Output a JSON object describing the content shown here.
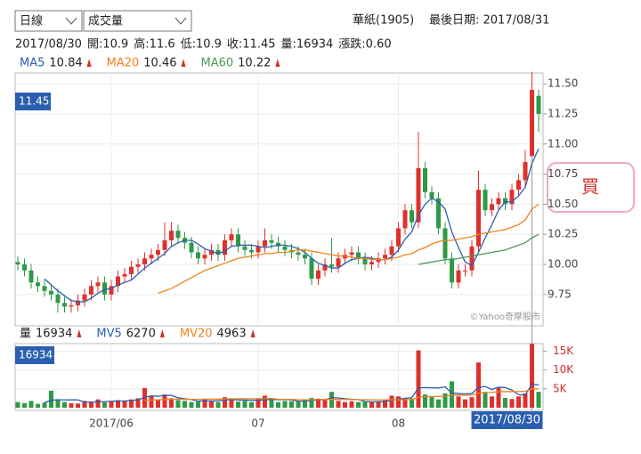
{
  "header": {
    "period": "日線",
    "indicator": "成交量",
    "stock": "華紙(1905)",
    "last_date": "最後日期: 2017/08/31",
    "info": [
      "2017/08/30",
      "開:10.9",
      "高:11.6",
      "低:10.9",
      "收:11.45",
      "量:16934",
      "漲跌:0.60"
    ],
    "buy": "買"
  },
  "chart_data": {
    "type": "candlestick",
    "watermark": "©Yahoo奇摩股市",
    "up_color": "#e0302c",
    "down_color": "#2e9a46",
    "categories": [
      null,
      null,
      null,
      null,
      null,
      null,
      null,
      null,
      null,
      null,
      null,
      null,
      null,
      null,
      "2017/06",
      null,
      null,
      null,
      null,
      null,
      null,
      null,
      null,
      null,
      null,
      null,
      null,
      null,
      null,
      null,
      null,
      null,
      null,
      null,
      null,
      null,
      "07",
      null,
      null,
      null,
      null,
      null,
      null,
      null,
      null,
      null,
      null,
      null,
      null,
      null,
      null,
      null,
      null,
      null,
      null,
      null,
      null,
      "08",
      null,
      null,
      null,
      null,
      null,
      null,
      null,
      null,
      null,
      null,
      null,
      null,
      null,
      null,
      null,
      null,
      null,
      null,
      null,
      "2017/08/30",
      null
    ],
    "open": [
      10.02,
      10.0,
      9.95,
      9.85,
      9.82,
      9.78,
      9.75,
      9.68,
      9.65,
      9.66,
      9.7,
      9.75,
      9.82,
      9.85,
      9.75,
      9.82,
      9.9,
      9.92,
      9.98,
      10.0,
      10.05,
      10.08,
      10.12,
      10.2,
      10.28,
      10.22,
      10.18,
      10.1,
      10.05,
      10.08,
      10.12,
      10.08,
      10.2,
      10.25,
      10.15,
      10.12,
      10.1,
      10.15,
      10.2,
      10.18,
      10.15,
      10.12,
      10.1,
      10.08,
      10.05,
      9.88,
      9.95,
      10.0,
      9.98,
      10.05,
      10.08,
      10.1,
      10.05,
      10.0,
      10.02,
      10.05,
      10.08,
      10.15,
      10.3,
      10.45,
      10.35,
      10.8,
      10.6,
      10.55,
      10.3,
      10.05,
      9.85,
      9.95,
      9.95,
      10.15,
      10.62,
      10.45,
      10.5,
      10.55,
      10.5,
      10.62,
      10.7,
      10.9,
      11.4
    ],
    "high": [
      10.07,
      10.05,
      10.0,
      9.9,
      9.87,
      9.83,
      9.8,
      9.73,
      9.71,
      9.75,
      9.8,
      9.87,
      9.9,
      9.9,
      9.87,
      9.95,
      9.97,
      10.03,
      10.05,
      10.1,
      10.13,
      10.17,
      10.35,
      10.35,
      10.33,
      10.27,
      10.23,
      10.15,
      10.13,
      10.17,
      10.17,
      10.25,
      10.3,
      10.3,
      10.2,
      10.17,
      10.2,
      10.3,
      10.25,
      10.23,
      10.2,
      10.17,
      10.15,
      10.13,
      10.1,
      10.0,
      10.05,
      10.22,
      10.1,
      10.13,
      10.15,
      10.15,
      10.1,
      10.07,
      10.1,
      10.13,
      10.2,
      10.35,
      10.5,
      10.5,
      11.1,
      10.85,
      10.65,
      10.6,
      10.35,
      10.1,
      10.0,
      10.0,
      10.2,
      10.78,
      10.67,
      10.55,
      10.6,
      10.6,
      10.67,
      10.75,
      10.95,
      11.6,
      11.45
    ],
    "low": [
      9.95,
      9.9,
      9.8,
      9.77,
      9.73,
      9.7,
      9.6,
      9.6,
      9.6,
      9.61,
      9.65,
      9.7,
      9.77,
      9.7,
      9.7,
      9.77,
      9.85,
      9.87,
      9.93,
      9.95,
      10.0,
      10.03,
      10.07,
      10.15,
      10.17,
      10.13,
      10.05,
      10.0,
      10.0,
      10.03,
      10.03,
      10.03,
      10.15,
      10.1,
      10.07,
      10.05,
      10.05,
      10.1,
      10.13,
      10.1,
      10.07,
      10.05,
      10.03,
      10.0,
      9.83,
      9.83,
      9.9,
      9.93,
      9.93,
      10.0,
      10.03,
      10.0,
      9.95,
      9.95,
      9.97,
      10.0,
      10.03,
      10.1,
      10.25,
      10.3,
      10.3,
      10.55,
      10.5,
      10.25,
      10.0,
      9.8,
      9.8,
      9.9,
      9.9,
      10.1,
      10.4,
      10.4,
      10.45,
      10.45,
      10.45,
      10.57,
      10.65,
      10.9,
      11.1
    ],
    "close": [
      10.0,
      9.95,
      9.85,
      9.82,
      9.78,
      9.75,
      9.68,
      9.65,
      9.66,
      9.7,
      9.75,
      9.82,
      9.85,
      9.75,
      9.82,
      9.9,
      9.92,
      9.98,
      10.0,
      10.05,
      10.08,
      10.12,
      10.2,
      10.28,
      10.22,
      10.18,
      10.1,
      10.05,
      10.08,
      10.12,
      10.08,
      10.2,
      10.25,
      10.15,
      10.12,
      10.1,
      10.15,
      10.2,
      10.18,
      10.15,
      10.12,
      10.1,
      10.08,
      10.05,
      9.88,
      9.95,
      10.0,
      9.98,
      10.05,
      10.08,
      10.1,
      10.05,
      10.0,
      10.02,
      10.05,
      10.08,
      10.15,
      10.3,
      10.45,
      10.35,
      10.8,
      10.6,
      10.55,
      10.3,
      10.05,
      9.85,
      9.95,
      9.95,
      10.15,
      10.62,
      10.45,
      10.5,
      10.55,
      10.5,
      10.62,
      10.7,
      10.85,
      11.45,
      11.25
    ],
    "ylim": [
      9.49,
      11.59
    ],
    "yticks": [
      9.75,
      {
        "value": 10,
        "label": "10.00"
      },
      10.25,
      {
        "value": 10.5,
        "label": "10.50"
      },
      10.75,
      {
        "value": 11,
        "label": "11.00"
      },
      11.25,
      {
        "value": 11.5,
        "label": "11.50"
      }
    ],
    "series": [
      {
        "name": "MA5",
        "color": "#2a5fb0",
        "values": [
          null,
          null,
          null,
          null,
          9.88,
          9.83,
          9.78,
          9.74,
          9.7,
          9.69,
          9.69,
          9.72,
          9.76,
          9.79,
          9.8,
          9.83,
          9.85,
          9.87,
          9.92,
          9.97,
          10.01,
          10.05,
          10.09,
          10.15,
          10.18,
          10.2,
          10.2,
          10.17,
          10.13,
          10.11,
          10.09,
          10.11,
          10.15,
          10.16,
          10.16,
          10.16,
          10.15,
          10.14,
          10.15,
          10.16,
          10.16,
          10.15,
          10.13,
          10.1,
          10.05,
          10.01,
          9.99,
          9.97,
          9.97,
          10.01,
          10.04,
          10.05,
          10.06,
          10.05,
          10.04,
          10.04,
          10.06,
          10.12,
          10.21,
          10.27,
          10.41,
          10.5,
          10.55,
          10.52,
          10.46,
          10.27,
          10.14,
          10.02,
          9.99,
          10.1,
          10.22,
          10.33,
          10.45,
          10.52,
          10.52,
          10.57,
          10.64,
          10.84,
          10.96
        ]
      },
      {
        "name": "MA20",
        "color": "#f0821e",
        "values": [
          null,
          null,
          null,
          null,
          null,
          null,
          null,
          null,
          null,
          null,
          null,
          null,
          null,
          null,
          null,
          null,
          null,
          null,
          null,
          null,
          null,
          9.76,
          9.78,
          9.8,
          9.83,
          9.86,
          9.89,
          9.92,
          9.95,
          9.97,
          9.99,
          10.01,
          10.03,
          10.05,
          10.06,
          10.07,
          10.08,
          10.09,
          10.09,
          10.1,
          10.1,
          10.11,
          10.12,
          10.12,
          10.11,
          10.1,
          10.09,
          10.08,
          10.07,
          10.07,
          10.06,
          10.05,
          10.05,
          10.04,
          10.04,
          10.04,
          10.05,
          10.06,
          10.08,
          10.09,
          10.12,
          10.14,
          10.17,
          10.19,
          10.2,
          10.2,
          10.21,
          10.22,
          10.23,
          10.25,
          10.26,
          10.27,
          10.28,
          10.29,
          10.31,
          10.33,
          10.37,
          10.46,
          10.5
        ]
      },
      {
        "name": "MA60",
        "color": "#4b9a52",
        "values": [
          null,
          null,
          null,
          null,
          null,
          null,
          null,
          null,
          null,
          null,
          null,
          null,
          null,
          null,
          null,
          null,
          null,
          null,
          null,
          null,
          null,
          null,
          null,
          null,
          null,
          null,
          null,
          null,
          null,
          null,
          null,
          null,
          null,
          null,
          null,
          null,
          null,
          null,
          null,
          null,
          null,
          null,
          null,
          null,
          null,
          null,
          null,
          null,
          null,
          null,
          null,
          null,
          null,
          null,
          null,
          null,
          null,
          null,
          null,
          null,
          10.0,
          10.01,
          10.02,
          10.03,
          10.04,
          10.04,
          10.05,
          10.06,
          10.07,
          10.08,
          10.09,
          10.1,
          10.11,
          10.12,
          10.14,
          10.16,
          10.18,
          10.22,
          10.25
        ]
      }
    ],
    "volume": {
      "type": "bar",
      "name": "量",
      "color": "#2a5fb0",
      "values": [
        1500,
        1200,
        1800,
        1000,
        1300,
        4500,
        2000,
        1500,
        1200,
        1100,
        1800,
        1600,
        2200,
        1400,
        1600,
        2000,
        1800,
        2200,
        2500,
        5200,
        3000,
        2200,
        3500,
        2500,
        2000,
        1800,
        1500,
        1600,
        2200,
        1900,
        1500,
        2800,
        2400,
        1600,
        1800,
        1500,
        2500,
        3200,
        2000,
        1500,
        1800,
        1700,
        1600,
        2100,
        2600,
        2400,
        2000,
        4200,
        1800,
        1500,
        1700,
        1500,
        1600,
        1400,
        1700,
        2000,
        3200,
        3000,
        2600,
        2400,
        15200,
        3500,
        2800,
        2200,
        3800,
        7000,
        3000,
        2200,
        2800,
        12000,
        4200,
        3000,
        5200,
        2600,
        2300,
        3000,
        3800,
        16934,
        4200
      ],
      "ylim": [
        0,
        17000
      ],
      "yticks": [
        {
          "value": 5000,
          "label": "5K"
        },
        {
          "value": 10000,
          "label": "10K"
        },
        {
          "value": 15000,
          "label": "15K"
        }
      ],
      "series": [
        {
          "name": "MV5",
          "color": "#2a5fb0",
          "values": [
            null,
            null,
            null,
            null,
            1360,
            1960,
            2120,
            2060,
            2100,
            2060,
            1520,
            1440,
            1580,
            1620,
            1720,
            1760,
            1800,
            1920,
            2060,
            2740,
            3140,
            3020,
            3280,
            3280,
            2640,
            2400,
            2160,
            1740,
            1820,
            1800,
            1840,
            2000,
            2160,
            2040,
            2020,
            1940,
            1960,
            2120,
            2200,
            2140,
            2200,
            2040,
            1720,
            1740,
            1960,
            2080,
            2140,
            2660,
            2600,
            2380,
            2240,
            2140,
            1620,
            1540,
            1580,
            1640,
            1980,
            2260,
            2500,
            2640,
            5280,
            5340,
            5300,
            5220,
            5540,
            3860,
            3760,
            3640,
            3760,
            5400,
            5640,
            4840,
            5440,
            5360,
            4660,
            3420,
            3380,
            6270,
            6050
          ]
        },
        {
          "name": "MV20",
          "color": "#f0821e",
          "values": [
            null,
            null,
            null,
            null,
            null,
            null,
            null,
            null,
            null,
            null,
            null,
            null,
            null,
            null,
            null,
            null,
            null,
            null,
            null,
            1960,
            2040,
            2090,
            2170,
            2240,
            2280,
            2230,
            2210,
            2220,
            2270,
            2300,
            2290,
            2350,
            2360,
            2370,
            2380,
            2350,
            2390,
            2440,
            2430,
            2280,
            2220,
            2200,
            2110,
            2090,
            2120,
            2150,
            2180,
            2230,
            2200,
            2180,
            2190,
            2130,
            2110,
            2100,
            2070,
            2090,
            2120,
            2110,
            2110,
            2160,
            2830,
            2920,
            2980,
            2990,
            3070,
            3300,
            3350,
            3280,
            3330,
            3860,
            3980,
            4050,
            4230,
            4290,
            4270,
            4290,
            4360,
            4963,
            5000
          ]
        }
      ]
    }
  }
}
